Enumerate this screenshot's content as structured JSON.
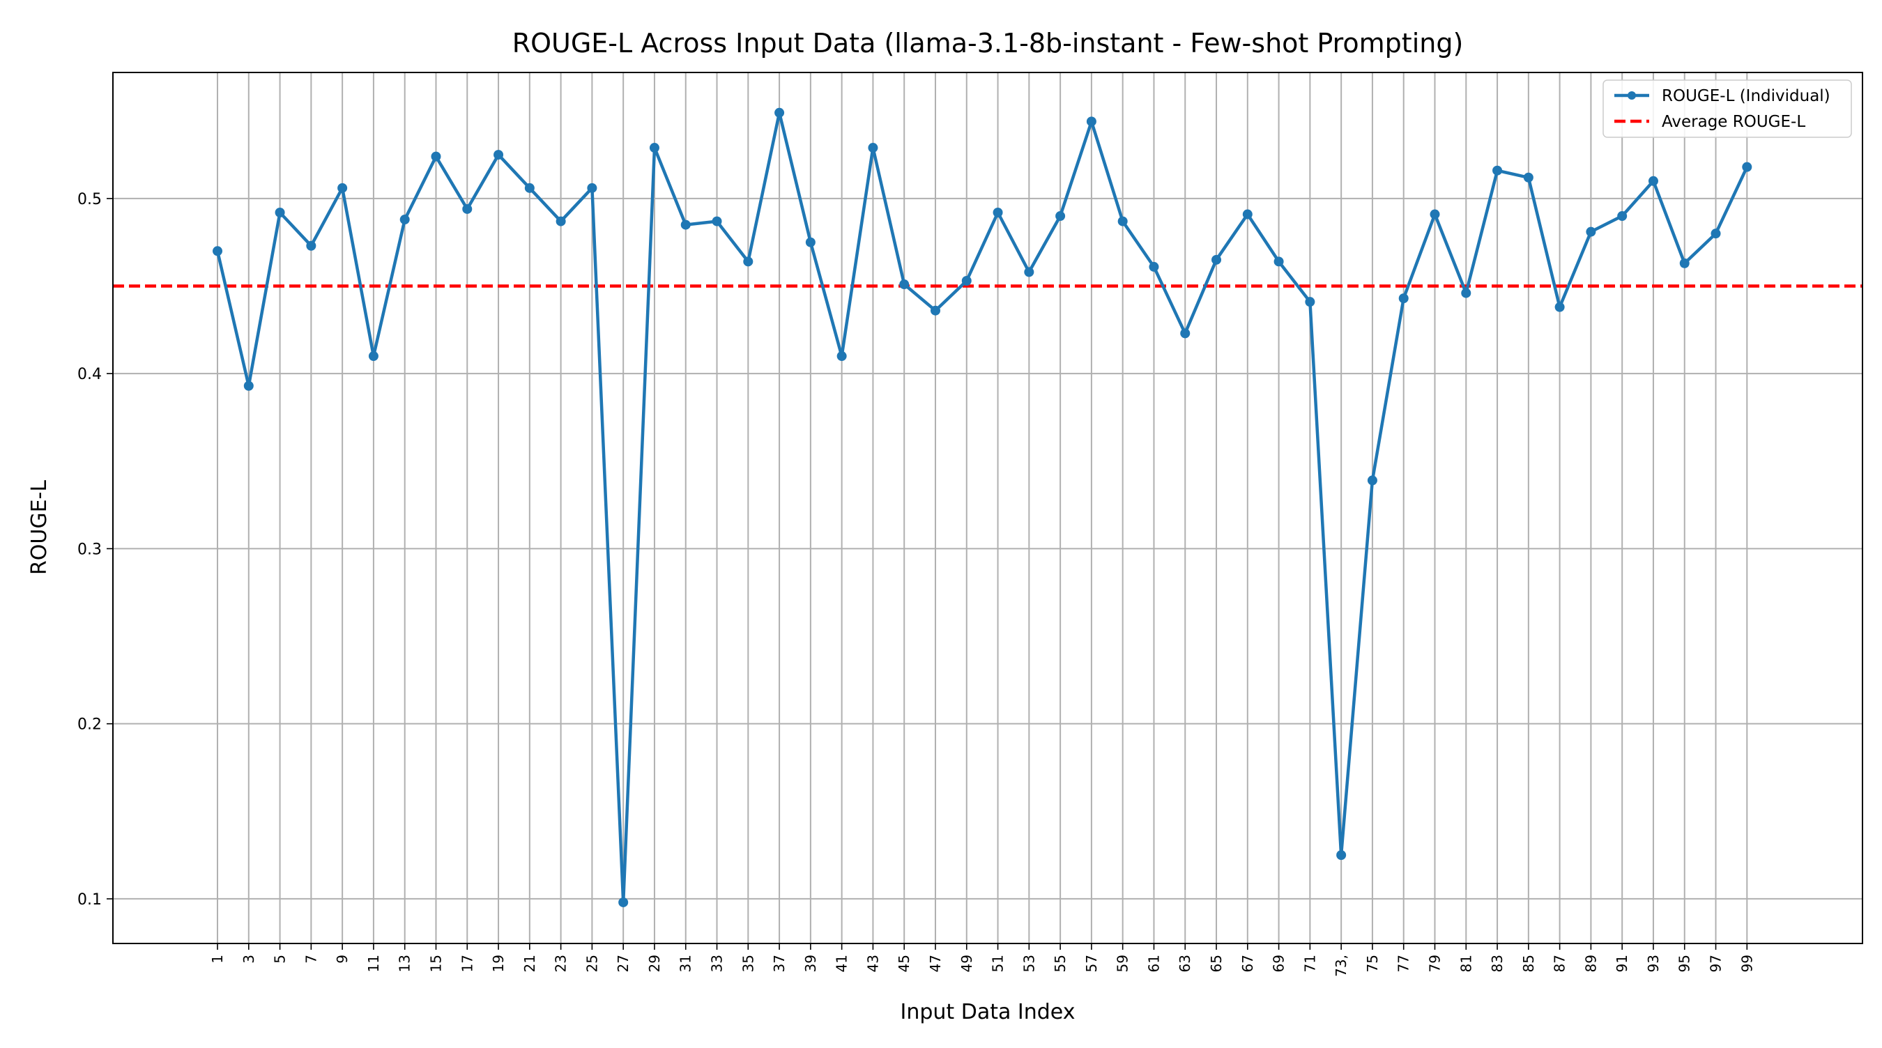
{
  "chart_data": {
    "type": "line",
    "title": "ROUGE-L Across Input Data (llama-3.1-8b-instant - Few-shot Prompting)",
    "xlabel": "Input Data Index",
    "ylabel": "ROUGE-L",
    "x": [
      1,
      3,
      5,
      7,
      9,
      11,
      13,
      15,
      17,
      19,
      21,
      23,
      25,
      27,
      29,
      31,
      33,
      35,
      37,
      39,
      41,
      43,
      45,
      47,
      49,
      51,
      53,
      55,
      57,
      59,
      61,
      63,
      65,
      67,
      69,
      71,
      73,
      75,
      77,
      79,
      81,
      83,
      85,
      87,
      89,
      91,
      93,
      95,
      97,
      99
    ],
    "xticks": [
      "1",
      "3",
      "5",
      "7",
      "9",
      "11",
      "13",
      "15",
      "17",
      "19",
      "21",
      "23",
      "25",
      "27",
      "29",
      "31",
      "33",
      "35",
      "37",
      "39",
      "41",
      "43",
      "45",
      "47",
      "49",
      "51",
      "53",
      "55",
      "57",
      "59",
      "61",
      "63",
      "65",
      "67",
      "69",
      "71",
      "73,",
      "75",
      "77",
      "79",
      "81",
      "83",
      "85",
      "87",
      "89",
      "91",
      "93",
      "95",
      "97",
      "99"
    ],
    "yticks": [
      "0.1",
      "0.2",
      "0.3",
      "0.4",
      "0.5"
    ],
    "ytick_values": [
      0.1,
      0.2,
      0.3,
      0.4,
      0.5
    ],
    "xlim": [
      -5.7,
      106.4
    ],
    "ylim": [
      0.0745,
      0.572
    ],
    "grid": true,
    "series": [
      {
        "name": "ROUGE-L (Individual)",
        "color": "#1f77b4",
        "marker": "circle",
        "values": [
          0.47,
          0.393,
          0.492,
          0.473,
          0.506,
          0.41,
          0.488,
          0.524,
          0.494,
          0.525,
          0.506,
          0.487,
          0.506,
          0.098,
          0.529,
          0.485,
          0.487,
          0.464,
          0.549,
          0.475,
          0.41,
          0.529,
          0.451,
          0.436,
          0.453,
          0.492,
          0.458,
          0.49,
          0.544,
          0.487,
          0.461,
          0.423,
          0.465,
          0.491,
          0.464,
          0.441,
          0.125,
          0.339,
          0.443,
          0.491,
          0.446,
          0.516,
          0.512,
          0.438,
          0.481,
          0.49,
          0.51,
          0.463,
          0.48,
          0.518
        ]
      }
    ],
    "reference_line": {
      "name": "Average ROUGE-L",
      "value": 0.45,
      "color": "#ff0000",
      "style": "dashed"
    },
    "legend_position": "top-right"
  }
}
